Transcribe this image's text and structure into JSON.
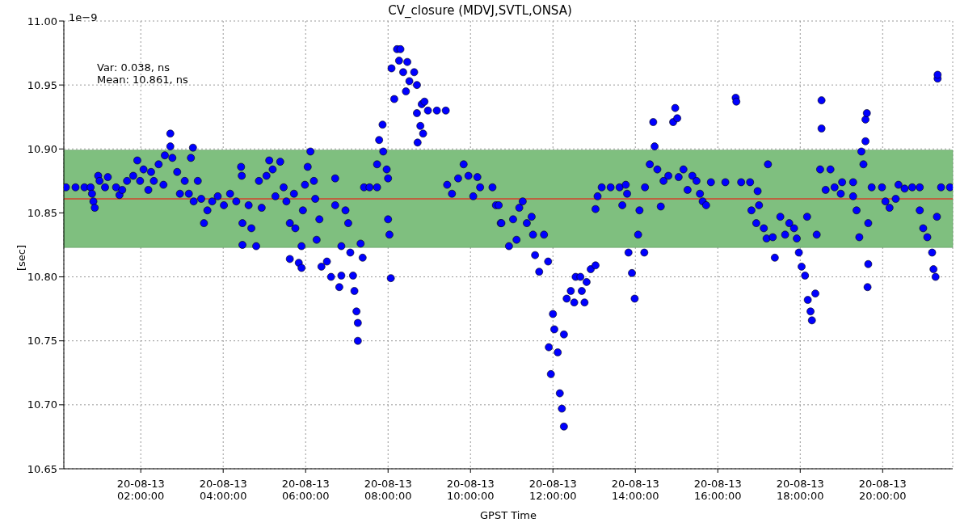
{
  "chart_data": {
    "type": "scatter",
    "title": "CV_closure (MDVJ,SVTL,ONSA)",
    "xlabel": "GPST Time",
    "ylabel": "[sec]",
    "annotations": [
      "1e−9",
      "Var: 0.038, ns",
      "Mean: 10.861, ns"
    ],
    "xlim": [
      "--08-13T00:08",
      "--08-13T21:42"
    ],
    "xticks": [
      {
        "value": "--08-13T02:00",
        "label": "20-08-13\n02:00:00"
      },
      {
        "value": "--08-13T04:00",
        "label": "20-08-13\n04:00:00"
      },
      {
        "value": "--08-13T06:00",
        "label": "20-08-13\n06:00:00"
      },
      {
        "value": "--08-13T08:00",
        "label": "20-08-13\n08:00:00"
      },
      {
        "value": "--08-13T10:00",
        "label": "20-08-13\n10:00:00"
      },
      {
        "value": "--08-13T12:00",
        "label": "20-08-13\n12:00:00"
      },
      {
        "value": "--08-13T14:00",
        "label": "20-08-13\n14:00:00"
      },
      {
        "value": "--08-13T16:00",
        "label": "20-08-13\n16:00:00"
      },
      {
        "value": "--08-13T18:00",
        "label": "20-08-13\n18:00:00"
      },
      {
        "value": "--08-13T20:00",
        "label": "20-08-13\n20:00:00"
      }
    ],
    "ylim": [
      10.65,
      11.0
    ],
    "yticks": [
      10.65,
      {
        "value": 10.7,
        "label": "10.70"
      },
      10.75,
      {
        "value": 10.8,
        "label": "10.80"
      },
      10.85,
      {
        "value": 10.9,
        "label": "10.90"
      },
      10.95,
      {
        "value": 11.0,
        "label": "11.00"
      }
    ],
    "grid": true,
    "marker": "circle",
    "ref_lines": [
      {
        "axis": "y",
        "value": 10.861,
        "color": "#ff0000"
      }
    ],
    "bands": [
      {
        "axis": "y",
        "from": 10.823,
        "to": 10.899,
        "color": "#7fbf7f"
      }
    ],
    "series": [
      {
        "color": "#0000ff",
        "x": [
          "--08-13T00:11",
          "--08-13T00:25",
          "--08-13T00:38",
          "--08-13T00:47",
          "--08-13T00:49",
          "--08-13T00:51",
          "--08-13T00:53",
          "--08-13T00:58",
          "--08-13T01:00",
          "--08-13T01:08",
          "--08-13T01:12",
          "--08-13T01:24",
          "--08-13T01:29",
          "--08-13T01:33",
          "--08-13T01:40",
          "--08-13T01:49",
          "--08-13T01:55",
          "--08-13T01:59",
          "--08-13T02:04",
          "--08-13T02:11",
          "--08-13T02:15",
          "--08-13T02:19",
          "--08-13T02:26",
          "--08-13T02:33",
          "--08-13T02:35",
          "--08-13T02:43",
          "--08-13T02:43",
          "--08-13T02:46",
          "--08-13T02:53",
          "--08-13T02:57",
          "--08-13T03:04",
          "--08-13T03:10",
          "--08-13T03:13",
          "--08-13T03:16",
          "--08-13T03:17",
          "--08-13T03:23",
          "--08-13T03:28",
          "--08-13T03:32",
          "--08-13T03:37",
          "--08-13T03:44",
          "--08-13T03:52",
          "--08-13T04:01",
          "--08-13T04:10",
          "--08-13T04:19",
          "--08-13T04:26",
          "--08-13T04:27",
          "--08-13T04:28",
          "--08-13T04:28",
          "--08-13T04:37",
          "--08-13T04:41",
          "--08-13T04:48",
          "--08-13T04:52",
          "--08-13T04:56",
          "--08-13T05:03",
          "--08-13T05:07",
          "--08-13T05:12",
          "--08-13T05:16",
          "--08-13T05:23",
          "--08-13T05:28",
          "--08-13T05:32",
          "--08-13T05:37",
          "--08-13T05:37",
          "--08-13T05:43",
          "--08-13T05:45",
          "--08-13T05:50",
          "--08-13T05:54",
          "--08-13T05:54",
          "--08-13T05:56",
          "--08-13T05:59",
          "--08-13T06:03",
          "--08-13T06:07",
          "--08-13T06:12",
          "--08-13T06:14",
          "--08-13T06:16",
          "--08-13T06:20",
          "--08-13T06:23",
          "--08-13T06:31",
          "--08-13T06:37",
          "--08-13T06:43",
          "--08-13T06:43",
          "--08-13T06:49",
          "--08-13T06:52",
          "--08-13T06:52",
          "--08-13T06:58",
          "--08-13T07:02",
          "--08-13T07:05",
          "--08-13T07:09",
          "--08-13T07:11",
          "--08-13T07:14",
          "--08-13T07:16",
          "--08-13T07:16",
          "--08-13T07:20",
          "--08-13T07:23",
          "--08-13T07:25",
          "--08-13T07:33",
          "--08-13T07:44",
          "--08-13T07:44",
          "--08-13T07:47",
          "--08-13T07:52",
          "--08-13T07:53",
          "--08-13T07:58",
          "--08-13T08:00",
          "--08-13T08:00",
          "--08-13T08:02",
          "--08-13T08:04",
          "--08-13T08:05",
          "--08-13T08:09",
          "--08-13T08:13",
          "--08-13T08:16",
          "--08-13T08:18",
          "--08-13T08:22",
          "--08-13T08:26",
          "--08-13T08:28",
          "--08-13T08:31",
          "--08-13T08:38",
          "--08-13T08:42",
          "--08-13T08:42",
          "--08-13T08:43",
          "--08-13T08:47",
          "--08-13T08:49",
          "--08-13T08:51",
          "--08-13T08:53",
          "--08-13T08:58",
          "--08-13T09:11",
          "--08-13T09:24",
          "--08-13T09:26",
          "--08-13T09:33",
          "--08-13T09:42",
          "--08-13T09:50",
          "--08-13T09:57",
          "--08-13T10:04",
          "--08-13T10:10",
          "--08-13T10:14",
          "--08-13T10:32",
          "--08-13T10:37",
          "--08-13T10:41",
          "--08-13T10:44",
          "--08-13T10:45",
          "--08-13T10:56",
          "--08-13T11:02",
          "--08-13T11:07",
          "--08-13T11:11",
          "--08-13T11:16",
          "--08-13T11:22",
          "--08-13T11:29",
          "--08-13T11:31",
          "--08-13T11:34",
          "--08-13T11:40",
          "--08-13T11:47",
          "--08-13T11:53",
          "--08-13T11:54",
          "--08-13T11:57",
          "--08-13T12:00",
          "--08-13T12:02",
          "--08-13T12:07",
          "--08-13T12:10",
          "--08-13T12:13",
          "--08-13T12:16",
          "--08-13T12:16",
          "--08-13T12:20",
          "--08-13T12:26",
          "--08-13T12:31",
          "--08-13T12:33",
          "--08-13T12:40",
          "--08-13T12:42",
          "--08-13T12:46",
          "--08-13T12:49",
          "--08-13T12:55",
          "--08-13T13:02",
          "--08-13T13:02",
          "--08-13T13:05",
          "--08-13T13:11",
          "--08-13T13:24",
          "--08-13T13:37",
          "--08-13T13:41",
          "--08-13T13:46",
          "--08-13T13:48",
          "--08-13T13:50",
          "--08-13T13:55",
          "--08-13T13:59",
          "--08-13T14:04",
          "--08-13T14:06",
          "--08-13T14:13",
          "--08-13T14:14",
          "--08-13T14:21",
          "--08-13T14:26",
          "--08-13T14:28",
          "--08-13T14:32",
          "--08-13T14:37",
          "--08-13T14:41",
          "--08-13T14:48",
          "--08-13T14:55",
          "--08-13T14:58",
          "--08-13T15:01",
          "--08-13T15:03",
          "--08-13T15:10",
          "--08-13T15:16",
          "--08-13T15:23",
          "--08-13T15:29",
          "--08-13T15:34",
          "--08-13T15:38",
          "--08-13T15:43",
          "--08-13T15:50",
          "--08-13T16:11",
          "--08-13T16:26",
          "--08-13T16:27",
          "--08-13T16:34",
          "--08-13T16:47",
          "--08-13T16:49",
          "--08-13T16:56",
          "--08-13T16:58",
          "--08-13T17:00",
          "--08-13T17:07",
          "--08-13T17:11",
          "--08-13T17:13",
          "--08-13T17:20",
          "--08-13T17:23",
          "--08-13T17:31",
          "--08-13T17:38",
          "--08-13T17:44",
          "--08-13T17:51",
          "--08-13T17:55",
          "--08-13T17:58",
          "--08-13T18:02",
          "--08-13T18:07",
          "--08-13T18:10",
          "--08-13T18:11",
          "--08-13T18:15",
          "--08-13T18:17",
          "--08-13T18:22",
          "--08-13T18:24",
          "--08-13T18:29",
          "--08-13T18:31",
          "--08-13T18:31",
          "--08-13T18:37",
          "--08-13T18:44",
          "--08-13T18:50",
          "--08-13T18:59",
          "--08-13T19:01",
          "--08-13T19:17",
          "--08-13T19:17",
          "--08-13T19:22",
          "--08-13T19:26",
          "--08-13T19:29",
          "--08-13T19:32",
          "--08-13T19:35",
          "--08-13T19:37",
          "--08-13T19:35",
          "--08-13T19:39",
          "--08-13T19:39",
          "--08-13T19:38",
          "--08-13T19:44",
          "--08-13T19:59",
          "--08-13T20:04",
          "--08-13T20:10",
          "--08-13T20:19",
          "--08-13T20:23",
          "--08-13T20:32",
          "--08-13T20:43",
          "--08-13T20:54",
          "--08-13T20:54",
          "--08-13T20:59",
          "--08-13T21:05",
          "--08-13T21:12",
          "--08-13T21:14",
          "--08-13T21:17",
          "--08-13T21:19",
          "--08-13T21:20",
          "--08-13T21:20",
          "--08-13T21:25",
          "--08-13T21:38"
        ],
        "values": [
          10.87,
          10.87,
          10.87,
          10.87,
          10.865,
          10.859,
          10.854,
          10.879,
          10.875,
          10.87,
          10.878,
          10.87,
          10.864,
          10.868,
          10.875,
          10.879,
          10.891,
          10.875,
          10.884,
          10.868,
          10.882,
          10.875,
          10.888,
          10.872,
          10.895,
          10.912,
          10.902,
          10.893,
          10.882,
          10.865,
          10.875,
          10.865,
          10.893,
          10.901,
          10.859,
          10.875,
          10.861,
          10.842,
          10.852,
          10.859,
          10.863,
          10.856,
          10.865,
          10.859,
          10.886,
          10.879,
          10.842,
          10.825,
          10.856,
          10.838,
          10.824,
          10.875,
          10.854,
          10.879,
          10.891,
          10.884,
          10.863,
          10.89,
          10.87,
          10.859,
          10.842,
          10.814,
          10.865,
          10.838,
          10.811,
          10.824,
          10.807,
          10.852,
          10.872,
          10.886,
          10.898,
          10.875,
          10.861,
          10.829,
          10.845,
          10.808,
          10.812,
          10.8,
          10.877,
          10.856,
          10.792,
          10.824,
          10.801,
          10.852,
          10.842,
          10.819,
          10.801,
          10.789,
          10.773,
          10.764,
          10.75,
          10.826,
          10.815,
          10.87,
          10.87,
          10.87,
          10.888,
          10.907,
          10.919,
          10.898,
          10.884,
          10.877,
          10.845,
          10.833,
          10.799,
          10.963,
          10.939,
          10.978,
          10.969,
          10.978,
          10.96,
          10.945,
          10.968,
          10.953,
          10.96,
          10.95,
          10.928,
          10.905,
          10.918,
          10.935,
          10.912,
          10.937,
          10.93,
          10.93,
          10.93,
          10.872,
          10.865,
          10.877,
          10.888,
          10.879,
          10.863,
          10.878,
          10.87,
          10.87,
          10.856,
          10.856,
          10.842,
          10.842,
          10.824,
          10.845,
          10.829,
          10.854,
          10.859,
          10.842,
          10.847,
          10.833,
          10.817,
          10.804,
          10.833,
          10.812,
          10.745,
          10.724,
          10.771,
          10.759,
          10.741,
          10.709,
          10.697,
          10.683,
          10.755,
          10.783,
          10.789,
          10.78,
          10.8,
          10.8,
          10.789,
          10.78,
          10.796,
          10.806,
          10.809,
          10.853,
          10.863,
          10.87,
          10.87,
          10.87,
          10.856,
          10.872,
          10.865,
          10.819,
          10.803,
          10.783,
          10.833,
          10.852,
          10.819,
          10.87,
          10.888,
          10.921,
          10.902,
          10.884,
          10.855,
          10.875,
          10.879,
          10.921,
          10.932,
          10.924,
          10.878,
          10.884,
          10.868,
          10.879,
          10.875,
          10.865,
          10.859,
          10.856,
          10.874,
          10.874,
          10.94,
          10.937,
          10.874,
          10.874,
          10.852,
          10.842,
          10.867,
          10.856,
          10.838,
          10.83,
          10.888,
          10.831,
          10.815,
          10.847,
          10.833,
          10.842,
          10.838,
          10.83,
          10.819,
          10.808,
          10.801,
          10.847,
          10.782,
          10.773,
          10.766,
          10.787,
          10.833,
          10.884,
          10.938,
          10.916,
          10.868,
          10.884,
          10.87,
          10.865,
          10.874,
          10.874,
          10.863,
          10.852,
          10.831,
          10.898,
          10.888,
          10.923,
          10.928,
          10.906,
          10.842,
          10.81,
          10.792,
          10.87,
          10.87,
          10.859,
          10.854,
          10.861,
          10.872,
          10.869,
          10.87,
          10.87,
          10.852,
          10.838,
          10.831,
          10.819,
          10.806,
          10.8,
          10.847,
          10.955,
          10.958,
          10.87,
          10.87
        ]
      }
    ]
  }
}
